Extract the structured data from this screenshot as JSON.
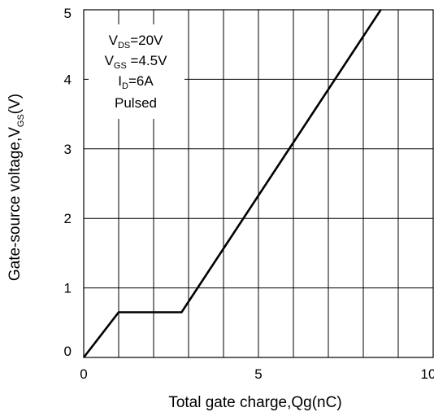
{
  "chart_data": {
    "type": "line",
    "xlabel": "Total gate charge,Qg(nC)",
    "ylabel": {
      "main": "Gate-source voltage,V",
      "sub": "GS",
      "suffix": "(V)"
    },
    "xlim": [
      0,
      10
    ],
    "ylim": [
      0,
      5
    ],
    "x_ticks": [
      0,
      5,
      10
    ],
    "x_tick_labels": [
      "0",
      "5",
      "10"
    ],
    "y_ticks": [
      0,
      1,
      2,
      3,
      4,
      5
    ],
    "y_tick_labels": [
      "0",
      "1",
      "2",
      "3",
      "4",
      "5"
    ],
    "x_grid": [
      1,
      2,
      3,
      4,
      5,
      6,
      7,
      8,
      9
    ],
    "y_grid": [
      1,
      2,
      3,
      4
    ],
    "grid": true,
    "series": [
      {
        "color": "#000000",
        "points": [
          [
            0,
            0
          ],
          [
            1.0,
            0.65
          ],
          [
            2.8,
            0.65
          ],
          [
            8.5,
            5.0
          ]
        ]
      }
    ],
    "annotation": {
      "lines": [
        {
          "main": "V",
          "sub": "DS",
          "rest": "=20V"
        },
        {
          "main": "V",
          "sub": "GS",
          "rest": " =4.5V"
        },
        {
          "main": "I",
          "sub": "D",
          "rest": "=6A"
        },
        {
          "main": "Pulsed",
          "sub": "",
          "rest": ""
        }
      ]
    }
  }
}
